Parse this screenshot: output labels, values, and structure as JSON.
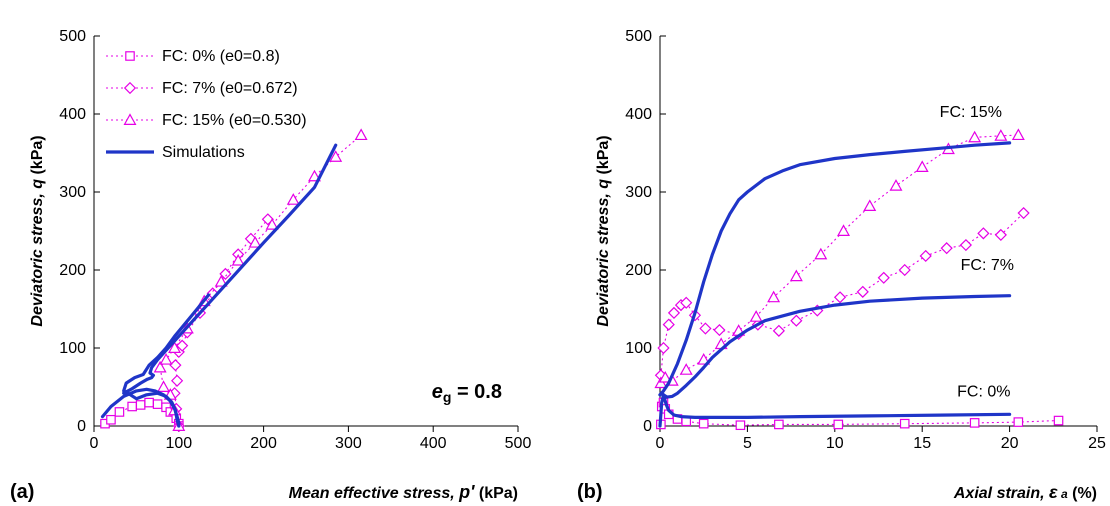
{
  "colors": {
    "experiment": "#e600e6",
    "simulation": "#1f35c8",
    "axis": "#000000"
  },
  "chart_data": [
    {
      "type": "scatter",
      "panel_label": "(a)",
      "xlabel": "Mean effective stress, p' (kPa)",
      "xlabel_parts": {
        "main": "Mean effective stress, ",
        "var": "p'",
        "unit": " (kPa)"
      },
      "ylabel": "Deviatoric stress, q (kPa)",
      "ylabel_parts": {
        "main": "Deviatoric stress, ",
        "var": "q",
        "unit": " (kPa)"
      },
      "xlim": [
        0,
        500
      ],
      "ylim": [
        0,
        500
      ],
      "xticks": [
        0,
        100,
        200,
        300,
        400,
        500
      ],
      "yticks": [
        0,
        100,
        200,
        300,
        400,
        500
      ],
      "grid": false,
      "legend_position": "top-left",
      "annotation": {
        "text": "e",
        "sub": "g",
        "value": " = 0.8"
      },
      "series": [
        {
          "name": "FC: 0% (e0=0.8)",
          "marker": "square",
          "style": "dotted",
          "x": [
            13,
            20,
            30,
            45,
            55,
            65,
            75,
            85,
            90,
            97,
            100,
            100
          ],
          "y": [
            3,
            8,
            18,
            25,
            27,
            30,
            28,
            24,
            18,
            10,
            3,
            0
          ]
        },
        {
          "name": "FC: 7% (e0=0.672)",
          "marker": "diamond",
          "style": "dotted",
          "x": [
            100,
            97,
            95,
            98,
            96,
            100,
            104,
            110,
            125,
            140,
            155,
            170,
            185,
            205
          ],
          "y": [
            0,
            22,
            42,
            58,
            78,
            95,
            103,
            120,
            145,
            170,
            195,
            220,
            240,
            265
          ]
        },
        {
          "name": "FC: 15% (e0=0.530)",
          "marker": "triangle",
          "style": "dotted",
          "x": [
            100,
            95,
            90,
            82,
            78,
            85,
            95,
            110,
            130,
            150,
            170,
            190,
            210,
            235,
            260,
            285,
            315
          ],
          "y": [
            0,
            20,
            40,
            50,
            75,
            85,
            100,
            125,
            160,
            185,
            212,
            235,
            258,
            290,
            320,
            345,
            373
          ]
        },
        {
          "name": "Simulations",
          "marker": "none",
          "style": "solid",
          "lines": [
            {
              "x": [
                10,
                20,
                35,
                50,
                62,
                72,
                82,
                90,
                95,
                98,
                100,
                100
              ],
              "y": [
                12,
                25,
                38,
                45,
                47,
                45,
                40,
                32,
                22,
                12,
                4,
                0
              ]
            },
            {
              "x": [
                100,
                98,
                96,
                92,
                85,
                75,
                62,
                50,
                40,
                35,
                38,
                48,
                58,
                65,
                75,
                85,
                95,
                105,
                120,
                135
              ],
              "y": [
                0,
                8,
                20,
                30,
                38,
                42,
                40,
                35,
                42,
                45,
                55,
                62,
                66,
                78,
                88,
                100,
                115,
                128,
                148,
                168
              ]
            },
            {
              "x": [
                35,
                45,
                55,
                63,
                68,
                70,
                66,
                68,
                75,
                90,
                110,
                140,
                170,
                200,
                230,
                260,
                285
              ],
              "y": [
                42,
                48,
                55,
                60,
                62,
                65,
                68,
                75,
                85,
                103,
                127,
                163,
                199,
                235,
                270,
                306,
                360
              ]
            }
          ]
        }
      ]
    },
    {
      "type": "line",
      "panel_label": "(b)",
      "xlabel": "Axial strain, ε a (%)",
      "xlabel_parts": {
        "main": "Axial strain, ",
        "var": "ε",
        "sub": "a",
        "unit": " (%)"
      },
      "ylabel": "Deviatoric stress, q (kPa)",
      "ylabel_parts": {
        "main": "Deviatoric stress, ",
        "var": "q",
        "unit": " (kPa)"
      },
      "xlim": [
        0,
        25
      ],
      "ylim": [
        0,
        500
      ],
      "xticks": [
        0,
        5,
        10,
        15,
        20,
        25
      ],
      "yticks": [
        0,
        100,
        200,
        300,
        400,
        500
      ],
      "grid": false,
      "legend_position": "none",
      "curve_labels": [
        {
          "text": "FC: 15%",
          "x": 16.0,
          "y": 396
        },
        {
          "text": "FC: 7%",
          "x": 17.2,
          "y": 200
        },
        {
          "text": "FC: 0%",
          "x": 17.0,
          "y": 38
        }
      ],
      "series": [
        {
          "name": "FC: 0% (e0=0.8)",
          "marker": "square",
          "style": "dotted",
          "x": [
            0.05,
            0.1,
            0.2,
            0.3,
            0.5,
            1.0,
            1.5,
            2.5,
            4.6,
            6.8,
            10.2,
            14.0,
            18.0,
            20.5,
            22.8
          ],
          "y": [
            2,
            25,
            30,
            22,
            15,
            9,
            6,
            3,
            1,
            2,
            2,
            3,
            4,
            5,
            7
          ]
        },
        {
          "name": "FC: 7% (e0=0.672)",
          "marker": "diamond",
          "style": "dotted",
          "x": [
            0.05,
            0.2,
            0.5,
            0.8,
            1.2,
            1.5,
            2.0,
            2.6,
            3.4,
            4.5,
            5.6,
            6.8,
            7.8,
            9.0,
            10.3,
            11.6,
            12.8,
            14.0,
            15.2,
            16.4,
            17.5,
            18.5,
            19.5,
            20.8
          ],
          "y": [
            65,
            100,
            130,
            145,
            155,
            158,
            142,
            125,
            123,
            118,
            130,
            122,
            135,
            148,
            165,
            172,
            190,
            200,
            218,
            228,
            232,
            247,
            245,
            273
          ]
        },
        {
          "name": "FC: 15% (e0=0.530)",
          "marker": "triangle",
          "style": "dotted",
          "x": [
            0.05,
            0.3,
            0.7,
            1.5,
            2.5,
            3.5,
            4.5,
            5.5,
            6.5,
            7.8,
            9.2,
            10.5,
            12.0,
            13.5,
            15.0,
            16.5,
            18.0,
            19.5,
            20.5
          ],
          "y": [
            55,
            62,
            58,
            72,
            85,
            105,
            122,
            140,
            165,
            192,
            220,
            250,
            282,
            308,
            332,
            355,
            370,
            372,
            373
          ]
        },
        {
          "name": "Simulations",
          "marker": "none",
          "style": "solid",
          "lines": [
            {
              "x": [
                0,
                0.1,
                0.2,
                0.35,
                0.5,
                0.8,
                1.2,
                2.0,
                3.0,
                5.0,
                8.0,
                12.0,
                16.0,
                20.0
              ],
              "y": [
                0,
                30,
                40,
                28,
                20,
                14,
                12,
                11,
                11,
                11,
                12,
                13,
                14,
                15
              ]
            },
            {
              "x": [
                0,
                0.1,
                0.2,
                0.4,
                0.7,
                1.0,
                1.5,
                2.0,
                2.5,
                3.0,
                4.0,
                5.0,
                6.0,
                8.0,
                10.0,
                12.0,
                15.0,
                18.0,
                20.0
              ],
              "y": [
                40,
                42,
                40,
                37,
                38,
                42,
                52,
                63,
                75,
                88,
                108,
                123,
                135,
                147,
                155,
                160,
                164,
                166,
                167
              ]
            },
            {
              "x": [
                0,
                0.2,
                0.5,
                1.0,
                1.5,
                2.0,
                2.5,
                3.0,
                3.5,
                4.0,
                4.5,
                5.0,
                6.0,
                7.0,
                8.0,
                10.0,
                12.0,
                14.0,
                16.0,
                18.0,
                20.0
              ],
              "y": [
                40,
                45,
                55,
                80,
                110,
                145,
                185,
                220,
                250,
                272,
                290,
                300,
                317,
                327,
                335,
                343,
                348,
                352,
                356,
                360,
                363
              ]
            }
          ]
        }
      ]
    }
  ]
}
